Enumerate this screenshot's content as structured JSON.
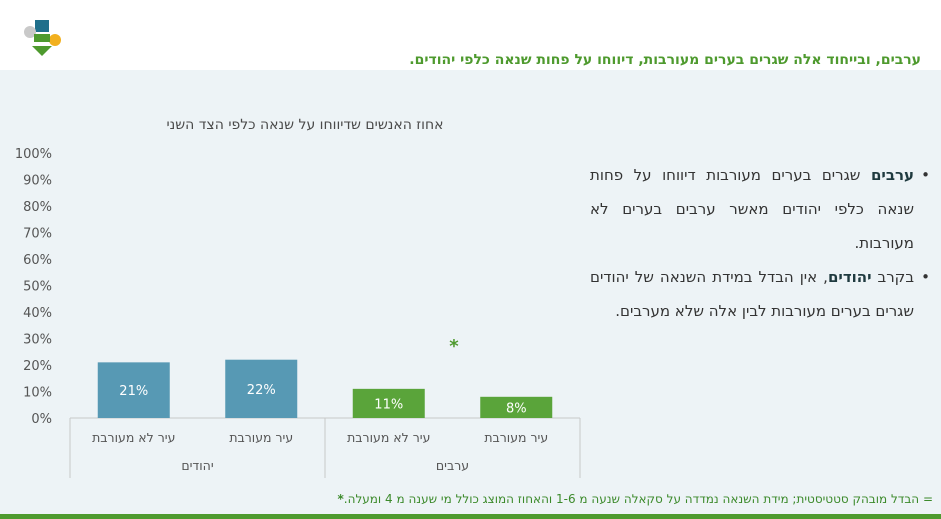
{
  "slide": {
    "title": "ערבים, ובייחוד אלה שגרים בערים מעורבות, דיווחו על פחות שנאה כלפי יהודים.",
    "colors": {
      "accent_green": "#4e9a2e",
      "bar_blue": "#5799b4",
      "bar_green": "#5aa43a",
      "background": "#edf3f6"
    }
  },
  "chart_data": {
    "type": "bar",
    "title": "אחוז האנשים שדיווחו על שנאה כלפי הצד השני",
    "y_ticks": [
      "100%",
      "90%",
      "80%",
      "70%",
      "60%",
      "50%",
      "40%",
      "30%",
      "20%",
      "10%",
      "0%"
    ],
    "ylim": [
      0,
      100
    ],
    "groups": [
      {
        "name": "יהודים",
        "color": "#5799b4",
        "bars": [
          {
            "category": "עיר לא מעורבת",
            "value": 21,
            "label": "21%"
          },
          {
            "category": "עיר מעורבת",
            "value": 22,
            "label": "22%"
          }
        ]
      },
      {
        "name": "ערבים",
        "color": "#5aa43a",
        "marker": "*",
        "bars": [
          {
            "category": "עיר לא מעורבת",
            "value": 11,
            "label": "11%"
          },
          {
            "category": "עיר מעורבת",
            "value": 8,
            "label": "8%"
          }
        ]
      }
    ]
  },
  "bullets": [
    {
      "bold": "ערבים",
      "rest": " שגרים בערים מעורבות דיווחו על פחות שנאה כלפי יהודים מאשר ערבים בערים לא מעורבות."
    },
    {
      "pre": "בקרב ",
      "bold": "יהודים",
      "rest": ", אין הבדל במידת השנאה של יהודים שגרים בערים מעורבות לבין אלה שלא מערבים."
    }
  ],
  "footnote": {
    "star": "*",
    "text": " = הבדל מובהק סטטיסטית; מידת השנאה נמדדה על סקאלה שנעה מ 1-6 והאחוז המוצג כולל מי שענה מ 4 ומעלה."
  }
}
